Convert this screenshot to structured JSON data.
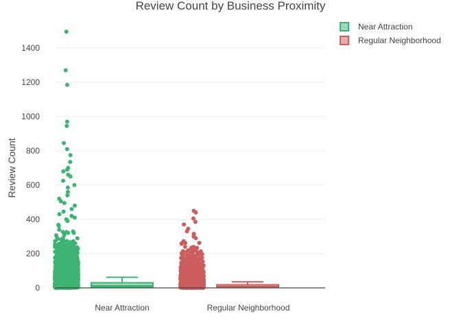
{
  "chart_data": {
    "type": "box",
    "title": "Review Count by Business Proximity",
    "xlabel": "",
    "ylabel": "Review Count",
    "ylim": [
      -10,
      1550
    ],
    "yticks": [
      0,
      200,
      400,
      600,
      800,
      1000,
      1200,
      1400
    ],
    "ytick_labels": [
      "0",
      "200",
      "400",
      "600",
      "800",
      "1000",
      "1200",
      "1400"
    ],
    "categories": [
      "Near Attraction",
      "Regular Neighborhood"
    ],
    "grid": true,
    "legend_position": "top-right",
    "series": [
      {
        "name": "Near Attraction",
        "color": "#3cb371",
        "box": {
          "min": 0,
          "q1": 5,
          "median": 12,
          "q3": 30,
          "whisker_high": 62
        },
        "points_max": 1495,
        "outliers": [
          1495,
          1270,
          1185,
          970,
          945,
          845,
          810,
          775,
          735,
          700,
          690,
          680,
          660,
          650,
          625,
          600,
          585,
          560,
          540,
          520,
          505,
          495,
          480,
          460,
          445,
          430,
          420,
          410,
          400,
          390
        ]
      },
      {
        "name": "Regular Neighborhood",
        "color": "#cd5c5c",
        "box": {
          "min": 0,
          "q1": 3,
          "median": 8,
          "q3": 18,
          "whisker_high": 35
        },
        "points_max": 450,
        "outliers": [
          450,
          440,
          405,
          385,
          370,
          345,
          330,
          315,
          300,
          290
        ]
      }
    ]
  }
}
